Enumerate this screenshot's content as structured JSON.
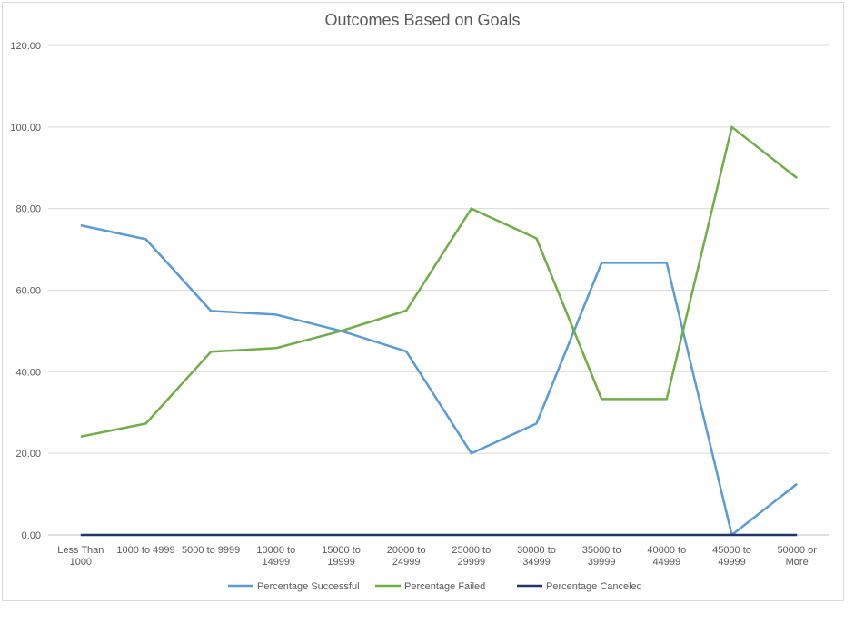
{
  "chart_data": {
    "type": "line",
    "title": "Outcomes Based on Goals",
    "xlabel": "",
    "ylabel": "",
    "ylim": [
      0,
      120
    ],
    "yticks": [
      "0.00",
      "20.00",
      "40.00",
      "60.00",
      "80.00",
      "100.00",
      "120.00"
    ],
    "grid": true,
    "legend_position": "bottom",
    "categories": [
      [
        "Less Than",
        "1000"
      ],
      [
        "1000 to 4999"
      ],
      [
        "5000 to 9999"
      ],
      [
        "10000 to",
        "14999"
      ],
      [
        "15000 to",
        "19999"
      ],
      [
        "20000 to",
        "24999"
      ],
      [
        "25000 to",
        "29999"
      ],
      [
        "30000 to",
        "34999"
      ],
      [
        "35000 to",
        "39999"
      ],
      [
        "40000 to",
        "44999"
      ],
      [
        "45000 to",
        "49999"
      ],
      [
        "50000 or",
        "More"
      ]
    ],
    "series": [
      {
        "name": "Percentage Successful",
        "color": "#5b9bd5",
        "values": [
          75.9,
          72.5,
          54.9,
          54.0,
          50.0,
          45.0,
          20.0,
          27.3,
          66.7,
          66.7,
          0.0,
          12.5
        ]
      },
      {
        "name": "Percentage Failed",
        "color": "#70ad47",
        "values": [
          24.1,
          27.3,
          44.9,
          45.8,
          50.0,
          55.0,
          80.0,
          72.7,
          33.3,
          33.3,
          100.0,
          87.5
        ]
      },
      {
        "name": "Percentage Canceled",
        "color": "#1f3864",
        "values": [
          0,
          0,
          0,
          0,
          0,
          0,
          0,
          0,
          0,
          0,
          0,
          0
        ]
      }
    ],
    "gridline_color": "#d9d9d9",
    "axis_line_color": "#bfbfbf",
    "text_color": "#595959"
  }
}
